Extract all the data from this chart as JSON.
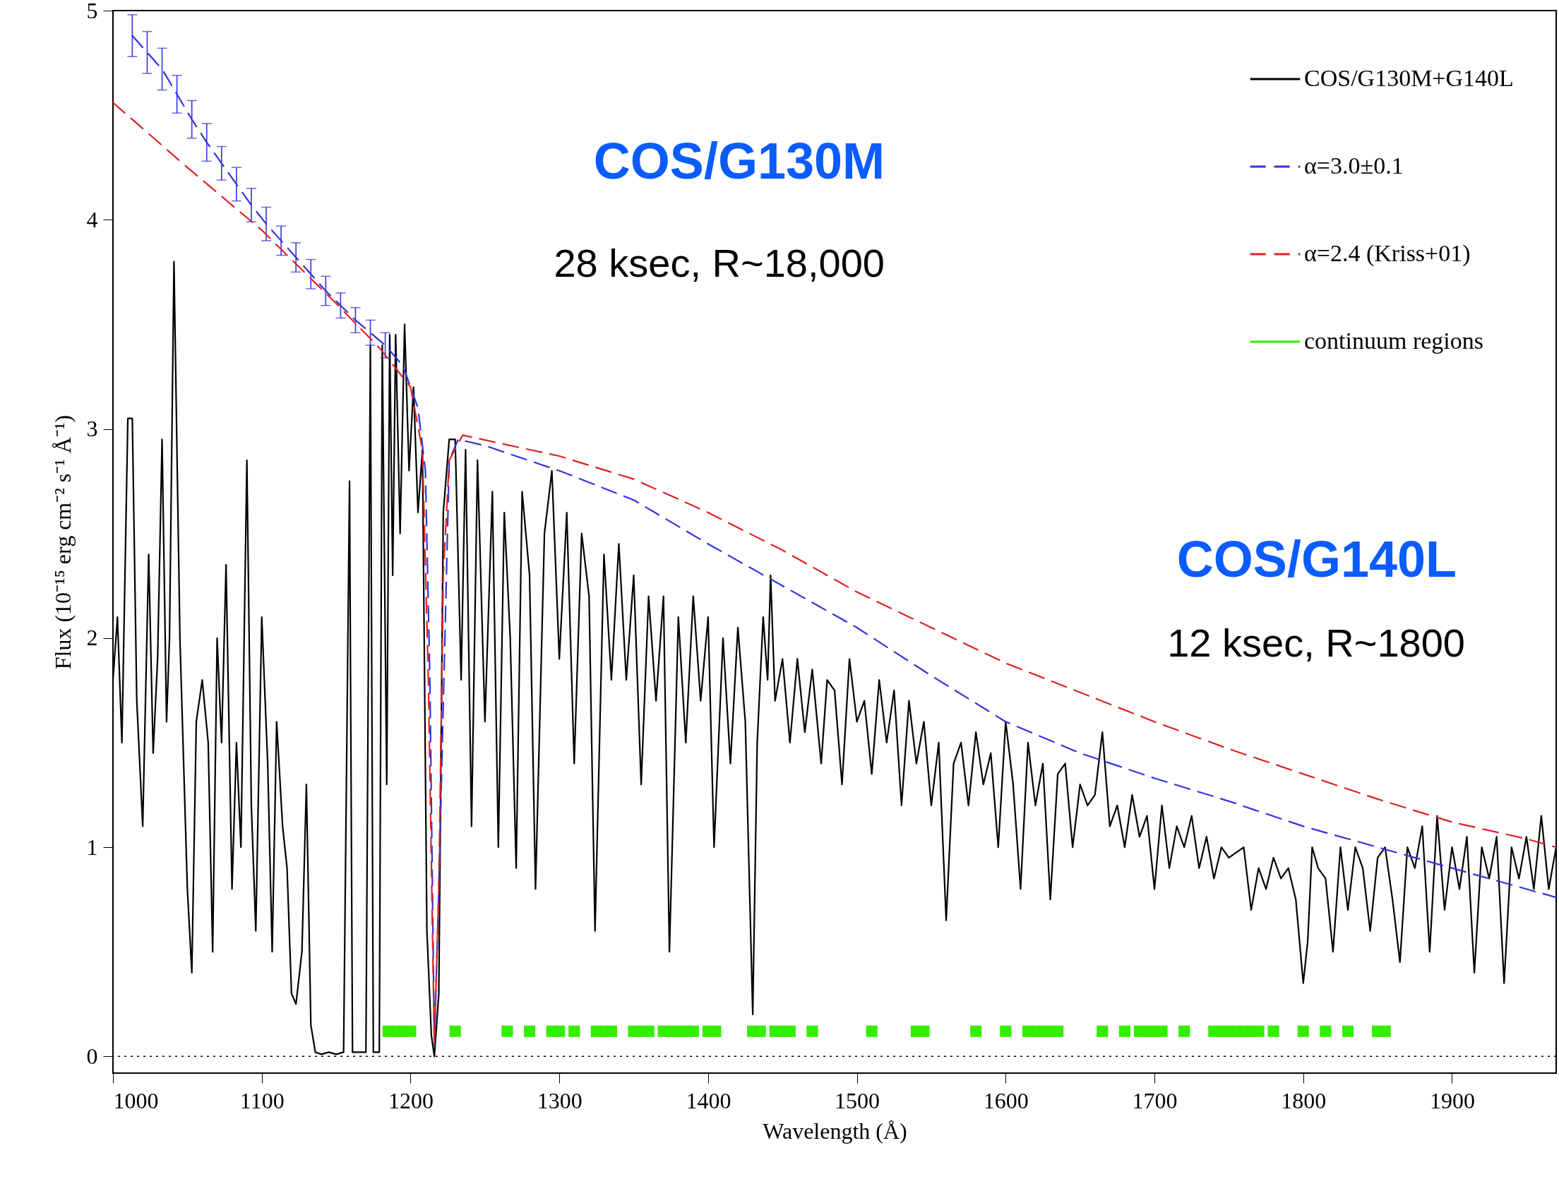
{
  "chart_data": {
    "type": "line",
    "xlabel": "Wavelength (Å)",
    "ylabel": "Flux (10⁻¹⁵ erg cm⁻² s⁻¹ Å⁻¹)",
    "xlim": [
      1000,
      1970
    ],
    "xticks": [
      1000,
      1100,
      1200,
      1300,
      1400,
      1500,
      1600,
      1700,
      1800,
      1900
    ],
    "ylim": [
      -0.08,
      5
    ],
    "yticks": [
      0,
      1,
      2,
      3,
      4,
      5
    ],
    "grid": false,
    "legend": "top right",
    "annotations": [
      "COS/G130M",
      "28 ksec, R~18,000",
      "COS/G140L",
      "12 ksec, R~1800"
    ],
    "ref_lines": [
      {
        "axis": "y",
        "value": 0,
        "color": "#000000",
        "line_style": "dotted"
      }
    ],
    "series": [
      {
        "name": "COS/G130M+G140L",
        "type": "line",
        "color": "#000000",
        "line_style": "solid",
        "x": [
          1000,
          1003,
          1006,
          1010,
          1013,
          1016,
          1020,
          1024,
          1027,
          1030,
          1033,
          1036,
          1038,
          1041,
          1045,
          1050,
          1053,
          1056,
          1060,
          1064,
          1067,
          1070,
          1073,
          1076,
          1080,
          1083,
          1086,
          1090,
          1093,
          1096,
          1100,
          1104,
          1107,
          1110,
          1114,
          1117,
          1120,
          1123,
          1127,
          1130,
          1133,
          1136,
          1140,
          1145,
          1150,
          1155,
          1159,
          1161,
          1165,
          1170,
          1173,
          1175,
          1179,
          1181,
          1184,
          1186,
          1188,
          1190,
          1193,
          1196,
          1199,
          1202,
          1205,
          1208,
          1211,
          1214,
          1216,
          1219,
          1222,
          1226,
          1230,
          1234,
          1237,
          1241,
          1245,
          1250,
          1255,
          1259,
          1263,
          1267,
          1271,
          1275,
          1280,
          1284,
          1290,
          1295,
          1300,
          1305,
          1310,
          1315,
          1320,
          1324,
          1330,
          1335,
          1340,
          1345,
          1350,
          1355,
          1360,
          1365,
          1370,
          1374,
          1380,
          1385,
          1390,
          1395,
          1400,
          1404,
          1410,
          1415,
          1420,
          1425,
          1430,
          1433,
          1437,
          1440,
          1442,
          1445,
          1450,
          1455,
          1460,
          1465,
          1470,
          1476,
          1480,
          1485,
          1490,
          1495,
          1500,
          1505,
          1510,
          1515,
          1520,
          1525,
          1530,
          1535,
          1540,
          1545,
          1550,
          1555,
          1560,
          1565,
          1570,
          1575,
          1580,
          1585,
          1590,
          1595,
          1600,
          1605,
          1610,
          1615,
          1620,
          1625,
          1630,
          1635,
          1640,
          1645,
          1650,
          1655,
          1660,
          1665,
          1670,
          1675,
          1680,
          1685,
          1690,
          1695,
          1700,
          1705,
          1710,
          1715,
          1720,
          1725,
          1730,
          1735,
          1740,
          1745,
          1750,
          1760,
          1765,
          1770,
          1775,
          1780,
          1785,
          1790,
          1795,
          1800,
          1803,
          1806,
          1810,
          1815,
          1820,
          1825,
          1830,
          1835,
          1840,
          1845,
          1850,
          1855,
          1860,
          1865,
          1870,
          1875,
          1880,
          1885,
          1890,
          1895,
          1900,
          1905,
          1910,
          1915,
          1920,
          1925,
          1930,
          1935,
          1940,
          1945,
          1950,
          1955,
          1960,
          1965,
          1970
        ],
        "values": [
          1.8,
          2.1,
          1.5,
          3.05,
          3.05,
          1.7,
          1.1,
          2.4,
          1.45,
          1.9,
          2.95,
          1.6,
          2.0,
          3.8,
          2.0,
          0.8,
          0.4,
          1.6,
          1.8,
          1.5,
          0.5,
          2.0,
          1.5,
          2.35,
          0.8,
          1.5,
          1.0,
          2.85,
          1.2,
          0.6,
          2.1,
          1.4,
          0.5,
          1.6,
          1.1,
          0.9,
          0.3,
          0.25,
          0.5,
          1.3,
          0.15,
          0.02,
          0.01,
          0.02,
          0.01,
          0.02,
          2.75,
          0.02,
          0.02,
          0.02,
          3.4,
          0.02,
          0.02,
          3.4,
          1.3,
          3.45,
          2.3,
          3.45,
          2.5,
          3.5,
          2.8,
          3.2,
          2.6,
          2.9,
          0.6,
          0.1,
          0.0,
          0.3,
          2.6,
          2.95,
          2.95,
          1.8,
          2.9,
          1.1,
          2.85,
          1.6,
          2.7,
          1.0,
          2.6,
          2.0,
          0.9,
          2.7,
          2.3,
          0.8,
          2.5,
          2.8,
          1.9,
          2.6,
          1.4,
          2.5,
          2.2,
          0.6,
          2.4,
          1.8,
          2.45,
          1.8,
          2.3,
          1.3,
          2.2,
          1.7,
          2.2,
          0.5,
          2.1,
          1.5,
          2.2,
          1.7,
          2.1,
          1.0,
          2.0,
          1.4,
          2.05,
          1.6,
          0.2,
          1.5,
          2.1,
          1.8,
          2.3,
          1.7,
          1.9,
          1.5,
          1.9,
          1.55,
          1.85,
          1.4,
          1.8,
          1.75,
          1.3,
          1.9,
          1.6,
          1.7,
          1.35,
          1.8,
          1.5,
          1.75,
          1.2,
          1.7,
          1.4,
          1.6,
          1.2,
          1.5,
          0.65,
          1.4,
          1.5,
          1.2,
          1.55,
          1.3,
          1.45,
          1.0,
          1.6,
          1.3,
          0.8,
          1.5,
          1.2,
          1.4,
          0.75,
          1.35,
          1.4,
          1.0,
          1.3,
          1.2,
          1.25,
          1.55,
          1.1,
          1.2,
          1.0,
          1.25,
          1.05,
          1.15,
          0.8,
          1.2,
          0.9,
          1.1,
          1.0,
          1.15,
          0.9,
          1.05,
          0.85,
          1.0,
          0.95,
          1.0,
          0.7,
          0.9,
          0.8,
          0.95,
          0.85,
          0.9,
          0.75,
          0.35,
          0.55,
          1.0,
          0.9,
          0.85,
          0.5,
          1.0,
          0.7,
          1.0,
          0.9,
          0.6,
          0.95,
          1.0,
          0.75,
          0.45,
          1.0,
          0.9,
          1.1,
          0.5,
          1.15,
          0.7,
          1.0,
          0.8,
          1.05,
          0.4,
          1.0,
          0.85,
          1.05,
          0.35,
          1.0,
          0.85,
          1.05,
          0.8,
          1.15,
          0.8,
          1.0
        ]
      },
      {
        "name": "α=3.0±0.1",
        "type": "line",
        "color": "#3333dd",
        "line_style": "dashed",
        "x": [
          1013,
          1023,
          1033,
          1043,
          1053,
          1063,
          1073,
          1083,
          1093,
          1103,
          1113,
          1123,
          1133,
          1143,
          1153,
          1163,
          1173,
          1183,
          1195,
          1205,
          1210,
          1213,
          1216,
          1219,
          1222,
          1226,
          1232,
          1250,
          1300,
          1350,
          1400,
          1450,
          1500,
          1550,
          1600,
          1650,
          1700,
          1750,
          1800,
          1850,
          1900,
          1950,
          1970
        ],
        "values": [
          4.88,
          4.8,
          4.72,
          4.6,
          4.48,
          4.37,
          4.27,
          4.17,
          4.07,
          3.98,
          3.9,
          3.82,
          3.74,
          3.66,
          3.59,
          3.52,
          3.46,
          3.4,
          3.3,
          3.1,
          2.8,
          1.8,
          0.05,
          0.8,
          null,
          2.85,
          2.95,
          2.92,
          2.8,
          2.66,
          2.45,
          2.25,
          2.05,
          1.82,
          1.6,
          1.45,
          1.33,
          1.22,
          1.1,
          1.0,
          0.9,
          0.8,
          0.76
        ],
        "errors": [
          0.1,
          0.1,
          0.1,
          0.09,
          0.09,
          0.09,
          0.08,
          0.08,
          0.08,
          0.08,
          0.07,
          0.07,
          0.07,
          0.07,
          0.06,
          0.06,
          0.06,
          0.06,
          null,
          null,
          null,
          null,
          null,
          null,
          null,
          null,
          null,
          null,
          null,
          null,
          null,
          null,
          null,
          null,
          null,
          null,
          null,
          null,
          null,
          null,
          null,
          null,
          null
        ]
      },
      {
        "name": "α=2.4 (Kriss+01)",
        "type": "line",
        "color": "#dd2222",
        "line_style": "dashed",
        "x": [
          1000,
          1050,
          1100,
          1150,
          1180,
          1200,
          1208,
          1212,
          1216,
          1219,
          1222,
          1226,
          1235,
          1300,
          1350,
          1400,
          1450,
          1500,
          1550,
          1600,
          1650,
          1700,
          1750,
          1800,
          1850,
          1900,
          1950,
          1970
        ],
        "values": [
          4.56,
          4.25,
          3.95,
          3.6,
          3.38,
          3.2,
          2.9,
          1.8,
          0.05,
          0.8,
          2.3,
          2.85,
          2.97,
          2.87,
          2.76,
          2.6,
          2.42,
          2.22,
          2.05,
          1.88,
          1.74,
          1.6,
          1.47,
          1.35,
          1.23,
          1.12,
          1.04,
          1.0
        ]
      },
      {
        "name": "continuum regions",
        "type": "scatter",
        "marker": "square",
        "color": "#33ee00",
        "x": [
          1185,
          1190,
          1195,
          1200,
          1230,
          1265,
          1280,
          1295,
          1300,
          1310,
          1325,
          1330,
          1335,
          1350,
          1355,
          1360,
          1370,
          1375,
          1380,
          1385,
          1390,
          1400,
          1405,
          1430,
          1435,
          1445,
          1450,
          1455,
          1470,
          1510,
          1540,
          1545,
          1580,
          1600,
          1615,
          1620,
          1625,
          1630,
          1635,
          1665,
          1680,
          1690,
          1695,
          1700,
          1705,
          1720,
          1740,
          1745,
          1750,
          1755,
          1760,
          1765,
          1770,
          1780,
          1800,
          1815,
          1830,
          1850,
          1855
        ],
        "values": [
          0.12,
          0.12,
          0.12,
          0.12,
          0.12,
          0.12,
          0.12,
          0.12,
          0.12,
          0.12,
          0.12,
          0.12,
          0.12,
          0.12,
          0.12,
          0.12,
          0.12,
          0.12,
          0.12,
          0.12,
          0.12,
          0.12,
          0.12,
          0.12,
          0.12,
          0.12,
          0.12,
          0.12,
          0.12,
          0.12,
          0.12,
          0.12,
          0.12,
          0.12,
          0.12,
          0.12,
          0.12,
          0.12,
          0.12,
          0.12,
          0.12,
          0.12,
          0.12,
          0.12,
          0.12,
          0.12,
          0.12,
          0.12,
          0.12,
          0.12,
          0.12,
          0.12,
          0.12,
          0.12,
          0.12,
          0.12,
          0.12,
          0.12,
          0.12
        ]
      }
    ]
  }
}
